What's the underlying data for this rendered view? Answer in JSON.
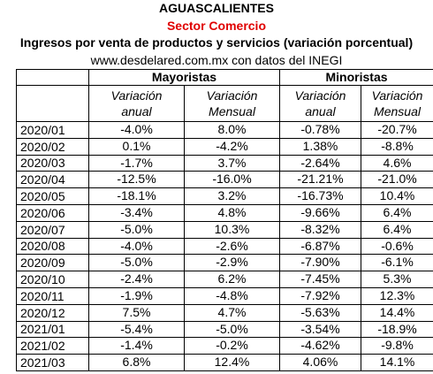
{
  "header": {
    "title": "AGUASCALIENTES",
    "subtitle": "Sector Comercio",
    "description": "Ingresos por venta de productos y servicios (variación porcentual)",
    "source": "www.desdelared.com.mx con datos del INEGI"
  },
  "table": {
    "groups": [
      "Mayoristas",
      "Minoristas"
    ],
    "subheaders": [
      [
        "Variación",
        "anual"
      ],
      [
        "Variación",
        "Mensual"
      ],
      [
        "Variación",
        "anual"
      ],
      [
        "Variación",
        "Mensual"
      ]
    ],
    "rows": [
      [
        "2020/01",
        "-4.0%",
        "8.0%",
        "-0.78%",
        "-20.7%"
      ],
      [
        "2020/02",
        "0.1%",
        "-4.2%",
        "1.38%",
        "-8.8%"
      ],
      [
        "2020/03",
        "-1.7%",
        "3.7%",
        "-2.64%",
        "4.6%"
      ],
      [
        "2020/04",
        "-12.5%",
        "-16.0%",
        "-21.21%",
        "-21.0%"
      ],
      [
        "2020/05",
        "-18.1%",
        "3.2%",
        "-16.73%",
        "10.4%"
      ],
      [
        "2020/06",
        "-3.4%",
        "4.8%",
        "-9.66%",
        "6.4%"
      ],
      [
        "2020/07",
        "-5.0%",
        "10.3%",
        "-8.32%",
        "6.4%"
      ],
      [
        "2020/08",
        "-4.0%",
        "-2.6%",
        "-6.87%",
        "-0.6%"
      ],
      [
        "2020/09",
        "-5.0%",
        "-2.9%",
        "-7.90%",
        "-6.1%"
      ],
      [
        "2020/10",
        "-2.4%",
        "6.2%",
        "-7.45%",
        "5.3%"
      ],
      [
        "2020/11",
        "-1.9%",
        "-4.8%",
        "-7.92%",
        "12.3%"
      ],
      [
        "2020/12",
        "7.5%",
        "4.7%",
        "-5.63%",
        "14.4%"
      ],
      [
        "2021/01",
        "-5.4%",
        "-5.0%",
        "-3.54%",
        "-18.9%"
      ],
      [
        "2021/02",
        "-1.4%",
        "-0.2%",
        "-4.62%",
        "-9.8%"
      ],
      [
        "2021/03",
        "6.8%",
        "12.4%",
        "4.06%",
        "14.1%"
      ]
    ]
  }
}
